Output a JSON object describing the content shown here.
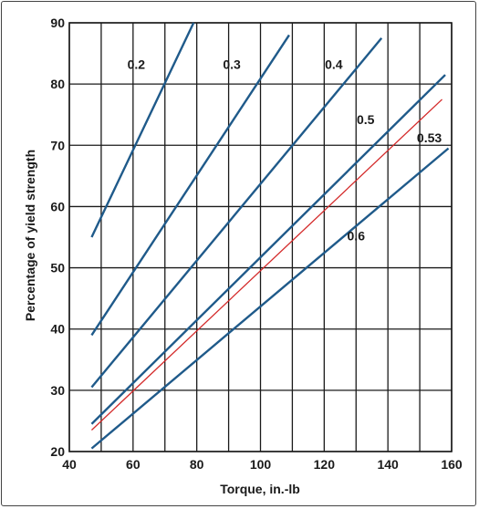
{
  "chart_data": {
    "type": "line",
    "xlabel": "Torque, in.-lb",
    "ylabel": "Percentage of yield strength",
    "xlim": [
      40,
      160
    ],
    "ylim": [
      20,
      90
    ],
    "x_ticks": [
      40,
      60,
      80,
      100,
      120,
      140,
      160
    ],
    "y_ticks": [
      20,
      30,
      40,
      50,
      60,
      70,
      80,
      90
    ],
    "grid": true,
    "colors": {
      "default": "#1f5a8a",
      "highlight": "#d42a2a",
      "grid": "#1a1a1a"
    },
    "series": [
      {
        "name": "0.2",
        "color": "#1f5a8a",
        "x": [
          47,
          79
        ],
        "y": [
          55,
          90
        ]
      },
      {
        "name": "0.3",
        "color": "#1f5a8a",
        "x": [
          47,
          109
        ],
        "y": [
          39,
          88
        ]
      },
      {
        "name": "0.4",
        "color": "#1f5a8a",
        "x": [
          47,
          138
        ],
        "y": [
          30.5,
          87.5
        ]
      },
      {
        "name": "0.5",
        "color": "#1f5a8a",
        "x": [
          47,
          158
        ],
        "y": [
          24.5,
          81.5
        ]
      },
      {
        "name": "0.53",
        "color": "#d42a2a",
        "x": [
          47,
          157
        ],
        "y": [
          23.5,
          77.5
        ]
      },
      {
        "name": "0.6",
        "color": "#1f5a8a",
        "x": [
          47,
          159
        ],
        "y": [
          20.5,
          69.5
        ]
      }
    ],
    "annotations": [
      {
        "text": "0.2",
        "x": 61,
        "y": 82.5
      },
      {
        "text": "0.3",
        "x": 91,
        "y": 82.5
      },
      {
        "text": "0.4",
        "x": 123,
        "y": 82.5
      },
      {
        "text": "0.5",
        "x": 133,
        "y": 73.5
      },
      {
        "text": "0.53",
        "x": 153,
        "y": 70.5
      },
      {
        "text": "0.6",
        "x": 130,
        "y": 54.5
      }
    ]
  }
}
